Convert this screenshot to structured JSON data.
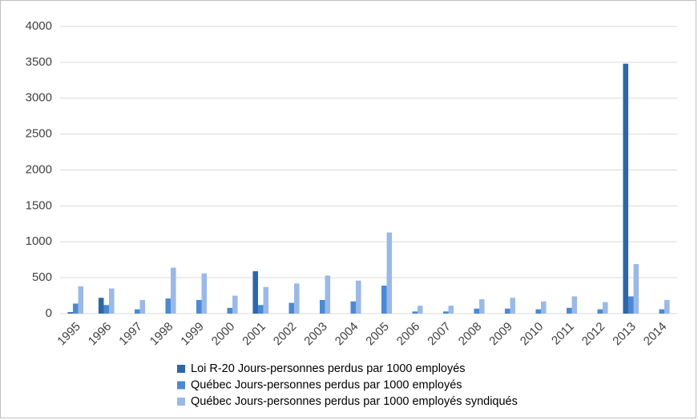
{
  "chart_data": {
    "type": "bar",
    "categories": [
      "1995",
      "1996",
      "1997",
      "1998",
      "1999",
      "2000",
      "2001",
      "2002",
      "2003",
      "2004",
      "2005",
      "2006",
      "2007",
      "2008",
      "2009",
      "2010",
      "2011",
      "2012",
      "2013",
      "2014"
    ],
    "series": [
      {
        "name": "Loi R-20 Jours-personnes perdus par 1000 employés",
        "color": "#2e66aa",
        "values": [
          20,
          220,
          0,
          0,
          0,
          0,
          590,
          0,
          0,
          0,
          0,
          0,
          0,
          0,
          0,
          0,
          0,
          0,
          3480,
          0
        ]
      },
      {
        "name": "Québec Jours-personnes perdus par 1000 employés",
        "color": "#4a8ad4",
        "values": [
          140,
          120,
          60,
          210,
          190,
          80,
          120,
          150,
          190,
          170,
          390,
          30,
          30,
          70,
          70,
          60,
          80,
          60,
          240,
          60
        ]
      },
      {
        "name": "Québec Jours-personnes perdus par 1000 employés syndiqués",
        "color": "#9bb9e6",
        "values": [
          380,
          350,
          190,
          640,
          560,
          250,
          370,
          420,
          530,
          460,
          1130,
          110,
          110,
          200,
          220,
          170,
          240,
          160,
          690,
          190
        ]
      }
    ],
    "ylim": [
      0,
      4000
    ],
    "yticks": [
      0,
      500,
      1000,
      1500,
      2000,
      2500,
      3000,
      3500,
      4000
    ],
    "grid": true,
    "legend": "bottom"
  }
}
